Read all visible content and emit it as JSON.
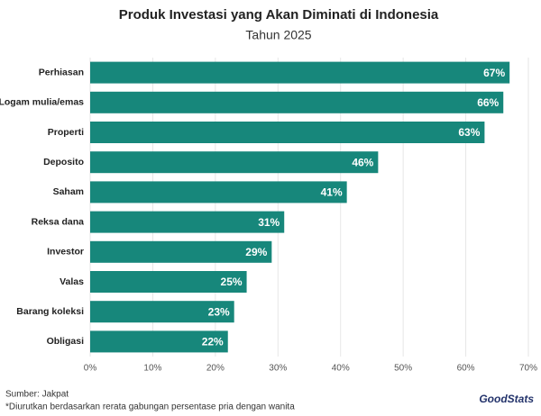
{
  "chart_data": {
    "type": "bar",
    "orientation": "horizontal",
    "title": "Produk Investasi yang Akan Diminati di Indonesia",
    "subtitle": "Tahun 2025",
    "categories": [
      "Perhiasan",
      "Logam mulia/emas",
      "Properti",
      "Deposito",
      "Saham",
      "Reksa dana",
      "Investor",
      "Valas",
      "Barang koleksi",
      "Obligasi"
    ],
    "values": [
      67,
      66,
      63,
      46,
      41,
      31,
      29,
      25,
      23,
      22
    ],
    "value_labels": [
      "67%",
      "66%",
      "63%",
      "46%",
      "41%",
      "31%",
      "29%",
      "25%",
      "23%",
      "22%"
    ],
    "color": "#17877b",
    "xlim": [
      0,
      70
    ],
    "xticks": [
      {
        "value": 0,
        "label": "0%"
      },
      {
        "value": 10,
        "label": "10%"
      },
      {
        "value": 20,
        "label": "20%"
      },
      {
        "value": 30,
        "label": "30%"
      },
      {
        "value": 40,
        "label": "40%"
      },
      {
        "value": 50,
        "label": "50%"
      },
      {
        "value": 60,
        "label": "60%"
      },
      {
        "value": 70,
        "label": "70%"
      }
    ],
    "grid": true,
    "source": "Sumber: Jakpat",
    "footnote": "*Diurutkan berdasarkan rerata gabungan persentase pria dengan wanita",
    "logo": "GoodStats"
  }
}
